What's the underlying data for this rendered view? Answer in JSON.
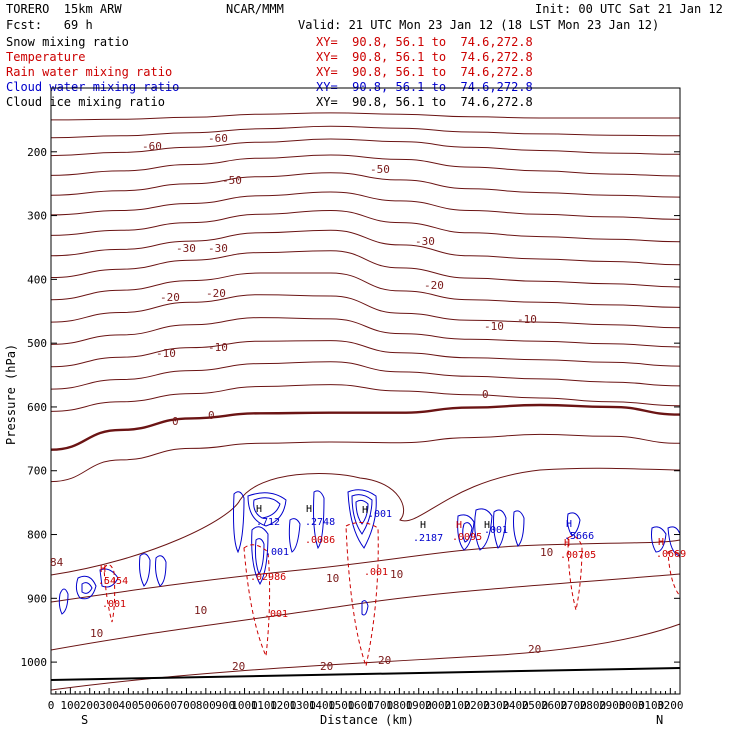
{
  "header": {
    "model": "TORERO  15km ARW",
    "fcst": "Fcst:   69 h",
    "org": "NCAR/MMM",
    "init": "Init: 00 UTC Sat 21 Jan 12",
    "valid": "Valid: 21 UTC Mon 23 Jan 12 (18 LST Mon 23 Jan 12)"
  },
  "fields": [
    {
      "name": "Snow mixing ratio",
      "xy": "XY=  90.8, 56.1 to  74.6,272.8",
      "color": "#000000"
    },
    {
      "name": "Temperature",
      "xy": "XY=  90.8, 56.1 to  74.6,272.8",
      "color": "#cc0000"
    },
    {
      "name": "Rain water mixing ratio",
      "xy": "XY=  90.8, 56.1 to  74.6,272.8",
      "color": "#cc0000"
    },
    {
      "name": "Cloud water mixing ratio",
      "xy": "XY=  90.8, 56.1 to  74.6,272.8",
      "color": "#0000cc"
    },
    {
      "name": "Cloud ice mixing ratio",
      "xy": "XY=  90.8, 56.1 to  74.6,272.8",
      "color": "#000000"
    }
  ],
  "chart_data": {
    "type": "contour",
    "xlabel": "Distance (km)",
    "ylabel": "Pressure (hPa)",
    "xlim": [
      0,
      3250
    ],
    "ylim": [
      1050,
      100
    ],
    "x_ticks": [
      0,
      100,
      200,
      300,
      400,
      500,
      600,
      700,
      800,
      900,
      1000,
      1100,
      1200,
      1300,
      1400,
      1500,
      1600,
      1700,
      1800,
      1900,
      2000,
      2100,
      2200,
      2300,
      2400,
      2500,
      2600,
      2700,
      2800,
      2900,
      3000,
      3100,
      3200
    ],
    "x_tick_labels": [
      "0",
      "100",
      "200",
      "300",
      "400",
      "500",
      "600",
      "700",
      "800",
      "900",
      "1000",
      "1100",
      "1200",
      "1300",
      "1400",
      "1500",
      "1600",
      "1700",
      "1800",
      "1900",
      "2000",
      "2100",
      "2200",
      "2300",
      "2400",
      "2500",
      "2600",
      "2700",
      "2800",
      "2900",
      "3000",
      "3100",
      "3200"
    ],
    "y_ticks": [
      200,
      300,
      400,
      500,
      600,
      700,
      800,
      900,
      1000
    ],
    "y_tick_labels": [
      "200",
      "300",
      "400",
      "500",
      "600",
      "700",
      "800",
      "900",
      "1000"
    ],
    "end_labels": {
      "left": "S",
      "right": "N"
    },
    "temperature_contours": [
      {
        "label": "-60",
        "p": [
          150,
          149,
          146,
          141,
          139,
          141,
          145,
          147,
          147,
          147
        ]
      },
      {
        "label": "",
        "p": [
          178,
          175,
          170,
          164,
          160,
          163,
          169,
          172,
          174,
          175
        ]
      },
      {
        "label": "-50",
        "p": [
          206,
          201,
          193,
          185,
          180,
          184,
          193,
          198,
          202,
          204
        ]
      },
      {
        "label": "",
        "p": [
          237,
          230,
          220,
          210,
          205,
          212,
          224,
          230,
          235,
          238
        ]
      },
      {
        "label": "-30",
        "p": [
          268,
          261,
          250,
          239,
          233,
          244,
          258,
          264,
          268,
          271
        ]
      },
      {
        "label": "",
        "p": [
          299,
          292,
          281,
          269,
          263,
          277,
          292,
          298,
          302,
          306
        ]
      },
      {
        "label": "-20",
        "p": [
          331,
          323,
          311,
          298,
          292,
          311,
          327,
          333,
          337,
          341
        ]
      },
      {
        "label": "",
        "p": [
          363,
          353,
          340,
          327,
          323,
          346,
          363,
          368,
          372,
          377
        ]
      },
      {
        "label": "-20",
        "p": [
          397,
          384,
          370,
          358,
          355,
          382,
          398,
          403,
          407,
          412
        ]
      },
      {
        "label": "",
        "p": [
          432,
          417,
          402,
          390,
          390,
          418,
          432,
          436,
          440,
          444
        ]
      },
      {
        "label": "-10",
        "p": [
          467,
          452,
          436,
          424,
          426,
          453,
          464,
          467,
          471,
          476
        ]
      },
      {
        "label": "",
        "p": [
          502,
          487,
          471,
          460,
          462,
          485,
          494,
          497,
          501,
          506
        ]
      },
      {
        "label": "-10",
        "p": [
          537,
          522,
          507,
          497,
          496,
          515,
          523,
          526,
          530,
          536
        ]
      },
      {
        "label": "",
        "p": [
          572,
          557,
          543,
          532,
          529,
          545,
          552,
          556,
          561,
          567
        ]
      },
      {
        "label": "",
        "p": [
          607,
          592,
          579,
          568,
          565,
          575,
          581,
          586,
          592,
          598
        ]
      },
      {
        "label": "0",
        "p": [
          667,
          636,
          618,
          610,
          609,
          609,
          601,
          597,
          600,
          612
        ]
      },
      {
        "label": "",
        "p": [
          717,
          683,
          665,
          657,
          655,
          656,
          648,
          643,
          646,
          657
        ]
      }
    ],
    "inline_labels": [
      "-60",
      "-60",
      "-50",
      "-50",
      "-30",
      "-30",
      "-30",
      "-20",
      "-20",
      "-20",
      "-10",
      "-10",
      "-10",
      "-10",
      "0",
      "0",
      "0",
      "10",
      "10",
      "10",
      "10",
      "10",
      "20",
      "20",
      "20",
      "20",
      "84"
    ],
    "h_labels": [
      "H",
      "H",
      "H",
      "H",
      "H",
      "H",
      "H",
      "H",
      "H",
      "H"
    ],
    "value_labels": [
      ".712",
      ".2748",
      ".001",
      ".001",
      ".2187",
      ".001",
      ".5666",
      ".00705",
      ".0086",
      ".0095",
      ".02986",
      ".001",
      ".001",
      ".001",
      ".5454",
      ".0669"
    ]
  }
}
